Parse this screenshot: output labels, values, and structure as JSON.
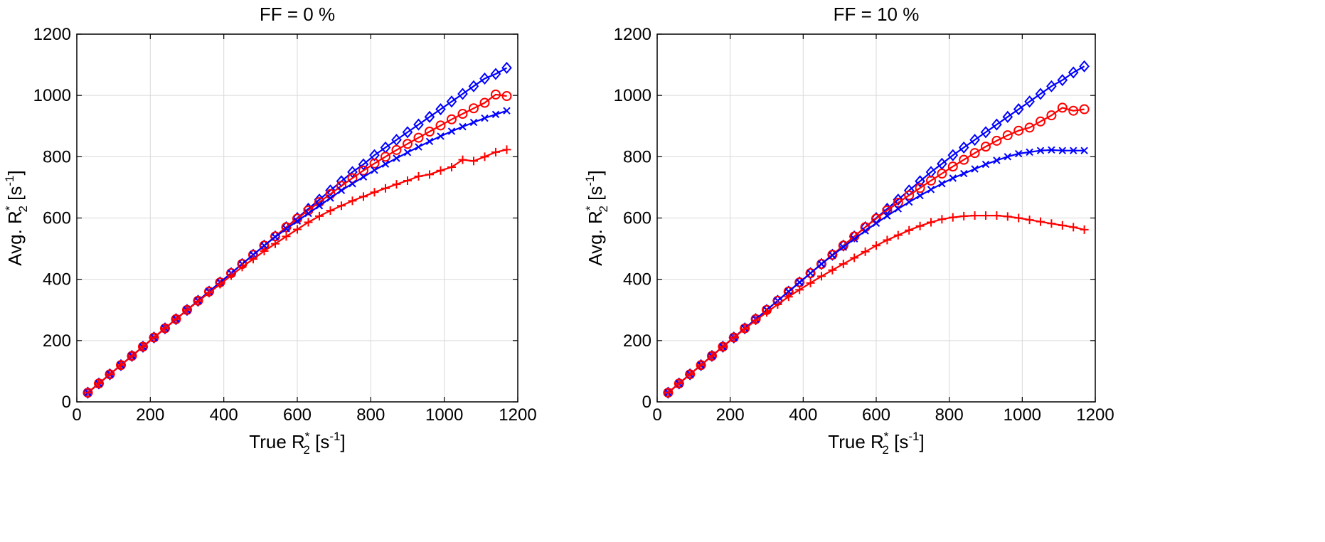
{
  "chart_data": [
    {
      "type": "line",
      "title": "FF = 0 %",
      "xlabel": {
        "main": "True R",
        "sub": "2",
        "sup": "*",
        "unit_pre": " [s",
        "unit_sup": "-1",
        "unit_post": "]"
      },
      "ylabel": {
        "main": "Avg. R",
        "sub": "2",
        "sup": "*",
        "unit_pre": " [s",
        "unit_sup": "-1",
        "unit_post": "]"
      },
      "xlim": [
        0,
        1200
      ],
      "ylim": [
        0,
        1200
      ],
      "xticks": [
        "0",
        "200",
        "400",
        "600",
        "800",
        "1000",
        "1200"
      ],
      "yticks": [
        "0",
        "200",
        "400",
        "600",
        "800",
        "1000",
        "1200"
      ],
      "grid": true,
      "x": [
        30,
        60,
        90,
        120,
        150,
        180,
        210,
        240,
        270,
        300,
        330,
        360,
        390,
        420,
        450,
        480,
        510,
        540,
        570,
        600,
        630,
        660,
        690,
        720,
        750,
        780,
        810,
        840,
        870,
        900,
        930,
        960,
        990,
        1020,
        1050,
        1080,
        1110,
        1140,
        1170
      ],
      "series": [
        {
          "marker": "diamond",
          "color": "#0000ff",
          "values": [
            30,
            60,
            90,
            120,
            150,
            180,
            210,
            240,
            270,
            300,
            330,
            360,
            390,
            420,
            450,
            480,
            510,
            540,
            570,
            600,
            630,
            660,
            690,
            720,
            750,
            775,
            805,
            830,
            855,
            880,
            905,
            930,
            955,
            980,
            1005,
            1030,
            1055,
            1070,
            1090
          ]
        },
        {
          "marker": "circle",
          "color": "#ff0000",
          "values": [
            30,
            60,
            90,
            120,
            150,
            180,
            210,
            240,
            270,
            300,
            330,
            360,
            390,
            420,
            450,
            480,
            510,
            540,
            570,
            598,
            625,
            652,
            678,
            705,
            730,
            755,
            778,
            800,
            822,
            842,
            862,
            882,
            902,
            922,
            940,
            958,
            976,
            1003,
            998
          ]
        },
        {
          "marker": "x",
          "color": "#0000ff",
          "values": [
            30,
            60,
            90,
            120,
            150,
            180,
            210,
            240,
            270,
            300,
            330,
            360,
            390,
            420,
            450,
            480,
            510,
            538,
            565,
            590,
            615,
            640,
            665,
            690,
            712,
            734,
            756,
            776,
            795,
            814,
            832,
            850,
            867,
            883,
            898,
            912,
            926,
            938,
            950
          ]
        },
        {
          "marker": "plus",
          "color": "#ff0000",
          "values": [
            30,
            60,
            90,
            120,
            150,
            180,
            210,
            240,
            270,
            300,
            328,
            356,
            384,
            412,
            440,
            466,
            492,
            516,
            540,
            563,
            586,
            606,
            624,
            640,
            656,
            670,
            684,
            697,
            710,
            722,
            736,
            742,
            755,
            766,
            790,
            786,
            800,
            815,
            823
          ]
        }
      ]
    },
    {
      "type": "line",
      "title": "FF = 10 %",
      "xlabel": {
        "main": "True R",
        "sub": "2",
        "sup": "*",
        "unit_pre": " [s",
        "unit_sup": "-1",
        "unit_post": "]"
      },
      "ylabel": {
        "main": "Avg. R",
        "sub": "2",
        "sup": "*",
        "unit_pre": " [s",
        "unit_sup": "-1",
        "unit_post": "]"
      },
      "xlim": [
        0,
        1200
      ],
      "ylim": [
        0,
        1200
      ],
      "xticks": [
        "0",
        "200",
        "400",
        "600",
        "800",
        "1000",
        "1200"
      ],
      "yticks": [
        "0",
        "200",
        "400",
        "600",
        "800",
        "1000",
        "1200"
      ],
      "grid": true,
      "x": [
        30,
        60,
        90,
        120,
        150,
        180,
        210,
        240,
        270,
        300,
        330,
        360,
        390,
        420,
        450,
        480,
        510,
        540,
        570,
        600,
        630,
        660,
        690,
        720,
        750,
        780,
        810,
        840,
        870,
        900,
        930,
        960,
        990,
        1020,
        1050,
        1080,
        1110,
        1140,
        1170
      ],
      "series": [
        {
          "marker": "diamond",
          "color": "#0000ff",
          "values": [
            30,
            60,
            90,
            120,
            150,
            180,
            210,
            240,
            270,
            300,
            330,
            360,
            390,
            420,
            450,
            480,
            510,
            540,
            570,
            600,
            630,
            660,
            690,
            720,
            750,
            777,
            805,
            830,
            855,
            880,
            905,
            930,
            955,
            980,
            1005,
            1030,
            1050,
            1075,
            1095
          ]
        },
        {
          "marker": "circle",
          "color": "#ff0000",
          "values": [
            30,
            60,
            90,
            120,
            150,
            180,
            210,
            240,
            270,
            300,
            330,
            360,
            390,
            420,
            450,
            480,
            510,
            540,
            570,
            598,
            625,
            650,
            674,
            698,
            722,
            745,
            768,
            790,
            812,
            833,
            852,
            870,
            885,
            895,
            915,
            935,
            960,
            950,
            955
          ]
        },
        {
          "marker": "x",
          "color": "#0000ff",
          "values": [
            30,
            60,
            90,
            120,
            150,
            180,
            210,
            240,
            270,
            300,
            330,
            360,
            390,
            420,
            450,
            478,
            505,
            532,
            558,
            583,
            607,
            630,
            652,
            673,
            693,
            712,
            730,
            745,
            760,
            775,
            788,
            800,
            810,
            815,
            820,
            822,
            820,
            820,
            820
          ]
        },
        {
          "marker": "plus",
          "color": "#ff0000",
          "values": [
            30,
            60,
            90,
            120,
            150,
            180,
            210,
            238,
            266,
            292,
            318,
            343,
            366,
            388,
            410,
            430,
            450,
            470,
            490,
            510,
            528,
            544,
            560,
            574,
            586,
            596,
            602,
            606,
            608,
            608,
            608,
            605,
            600,
            594,
            588,
            582,
            576,
            570,
            562
          ]
        }
      ]
    }
  ]
}
